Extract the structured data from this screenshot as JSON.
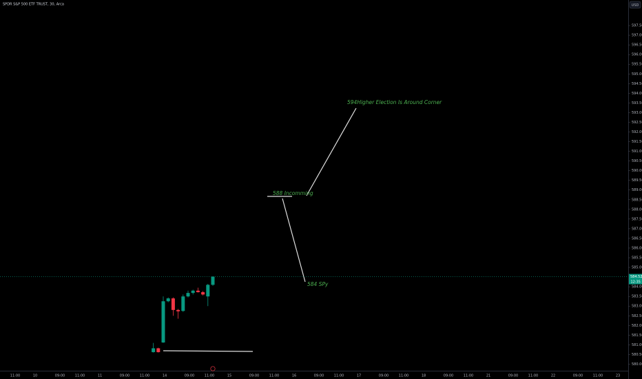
{
  "chart_data": {
    "type": "candlestick",
    "title": "SPDR S&P 500 ETF TRUST, 30, Arca",
    "currency": "USD",
    "up_color": "#089981",
    "down_color": "#f23645",
    "ylim": [
      579.66,
      598.82
    ],
    "yticks": [
      {
        "value": 580,
        "label": "580.00"
      },
      {
        "value": 580.5,
        "label": "580.50"
      },
      {
        "value": 581,
        "label": "581.00"
      },
      {
        "value": 581.5,
        "label": "581.50"
      },
      {
        "value": 582,
        "label": "582.00"
      },
      {
        "value": 582.5,
        "label": "582.50"
      },
      {
        "value": 583,
        "label": "583.00"
      },
      {
        "value": 583.5,
        "label": "583.50"
      },
      {
        "value": 584,
        "label": "584.00"
      },
      {
        "value": 585,
        "label": "585.00"
      },
      {
        "value": 585.5,
        "label": "585.50"
      },
      {
        "value": 586,
        "label": "586.00"
      },
      {
        "value": 586.5,
        "label": "586.50"
      },
      {
        "value": 587,
        "label": "587.00"
      },
      {
        "value": 587.5,
        "label": "587.50"
      },
      {
        "value": 588,
        "label": "588.00"
      },
      {
        "value": 588.5,
        "label": "588.50"
      },
      {
        "value": 589,
        "label": "589.00"
      },
      {
        "value": 589.5,
        "label": "589.50"
      },
      {
        "value": 590,
        "label": "590.00"
      },
      {
        "value": 590.5,
        "label": "590.50"
      },
      {
        "value": 591,
        "label": "591.00"
      },
      {
        "value": 591.5,
        "label": "591.50"
      },
      {
        "value": 592,
        "label": "592.00"
      },
      {
        "value": 592.5,
        "label": "592.50"
      },
      {
        "value": 593,
        "label": "593.00"
      },
      {
        "value": 593.5,
        "label": "593.50"
      },
      {
        "value": 594,
        "label": "594.00"
      },
      {
        "value": 594.5,
        "label": "594.50"
      },
      {
        "value": 595,
        "label": "595.00"
      },
      {
        "value": 595.5,
        "label": "595.50"
      },
      {
        "value": 596,
        "label": "596.00"
      },
      {
        "value": 596.5,
        "label": "596.50"
      },
      {
        "value": 597,
        "label": "597.00"
      },
      {
        "value": 597.5,
        "label": "597.50"
      }
    ],
    "x_labels": [
      "11:00",
      "10",
      "09:00",
      "11:00",
      "11",
      "09:00",
      "11:00",
      "14",
      "09:00",
      "11:00",
      "15",
      "09:00",
      "11:00",
      "16",
      "09:00",
      "11:00",
      "17",
      "09:00",
      "11:00",
      "18",
      "09:00",
      "11:00",
      "21",
      "09:00",
      "11:00",
      "22",
      "09:00",
      "11:00",
      "23"
    ],
    "open": [
      580.62,
      580.82,
      581.12,
      583.25,
      583.4,
      582.8,
      582.75,
      583.5,
      583.68,
      583.8,
      583.72,
      583.5,
      584.1
    ],
    "high": [
      581.1,
      580.85,
      583.5,
      583.45,
      583.45,
      582.85,
      583.6,
      583.8,
      583.85,
      583.95,
      583.78,
      584.15,
      584.55
    ],
    "low": [
      580.6,
      580.6,
      581.1,
      583.2,
      582.5,
      582.35,
      582.7,
      583.45,
      583.6,
      583.7,
      583.55,
      583.0,
      584.05
    ],
    "close": [
      580.82,
      580.62,
      583.25,
      583.4,
      582.8,
      582.73,
      583.5,
      583.68,
      583.8,
      583.72,
      583.6,
      584.1,
      584.52
    ],
    "last_price": {
      "value": 584.52,
      "label": "584.52"
    },
    "countdown": "12:35",
    "annotations": [
      "594Higher Election Is Around Corner",
      "588 Incomming",
      "584  SPy"
    ]
  }
}
